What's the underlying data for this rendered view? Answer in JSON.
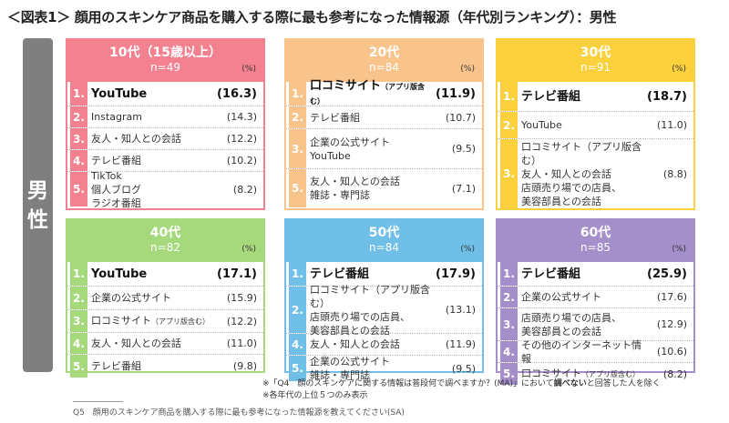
{
  "title": "＜図表1＞ 顔用のスキンケア商品を購入する際に最も参考になった情報源（年代別ランキング）：男性",
  "gender": "男性",
  "unit": "(%)",
  "chart_data": {
    "type": "table",
    "title": "＜図表1＞ 顔用のスキンケア商品を購入する際に最も参考になった情報源（年代別ランキング）：男性",
    "segment": "男性",
    "panels": [
      {
        "age": "10代（15歳以上）",
        "n": "n=49",
        "color": "#f4818f",
        "rankColor": "#f4818f",
        "rows": [
          {
            "rank": "1.",
            "label": "YouTube",
            "value": "(16.3)"
          },
          {
            "rank": "2.",
            "label": "Instagram",
            "value": "(14.3)"
          },
          {
            "rank": "3.",
            "label": "友人・知人との会話",
            "value": "(12.2)"
          },
          {
            "rank": "4.",
            "label": "テレビ番組",
            "value": "(10.2)"
          },
          {
            "rank": "5.",
            "label": "TikTok\n個人ブログ\nラジオ番組",
            "value": "(8.2)"
          }
        ]
      },
      {
        "age": "20代",
        "n": "n=84",
        "color": "#f9c48c",
        "rankColor": "#f9c48c",
        "rows": [
          {
            "rank": "1.",
            "label": "口コミサイト",
            "sub": "（アプリ版含む）",
            "value": "(11.9)"
          },
          {
            "rank": "2.",
            "label": "テレビ番組",
            "value": "(10.7)"
          },
          {
            "rank": "3.",
            "label": "企業の公式サイト\nYouTube",
            "value": "(9.5)"
          },
          {
            "rank": "5.",
            "label": "友人・知人との会話\n雑誌・専門誌",
            "value": "(7.1)"
          }
        ]
      },
      {
        "age": "30代",
        "n": "n=91",
        "color": "#fad13d",
        "rankColor": "#fad13d",
        "rows": [
          {
            "rank": "1.",
            "label": "テレビ番組",
            "value": "(18.7)"
          },
          {
            "rank": "2.",
            "label": "YouTube",
            "value": "(11.0)"
          },
          {
            "rank": "3.",
            "label": "口コミサイト（アプリ版含む）\n友人・知人との会話\n店頭売り場での店員、\n美容部員との会話",
            "value": "(8.8)"
          }
        ]
      },
      {
        "age": "40代",
        "n": "n=82",
        "color": "#a6d97c",
        "rankColor": "#a6d97c",
        "rows": [
          {
            "rank": "1.",
            "label": "YouTube",
            "value": "(17.1)"
          },
          {
            "rank": "2.",
            "label": "企業の公式サイト",
            "value": "(15.9)"
          },
          {
            "rank": "3.",
            "label": "口コミサイト",
            "sub": "（アプリ版含む）",
            "value": "(12.2)"
          },
          {
            "rank": "4.",
            "label": "友人・知人との会話",
            "value": "(11.0)"
          },
          {
            "rank": "5.",
            "label": "テレビ番組",
            "value": "(9.8)"
          }
        ]
      },
      {
        "age": "50代",
        "n": "n=84",
        "color": "#6fbfe8",
        "rankColor": "#6fbfe8",
        "rows": [
          {
            "rank": "1.",
            "label": "テレビ番組",
            "value": "(17.9)"
          },
          {
            "rank": "2.",
            "label": "口コミサイト（アプリ版含む）\n店頭売り場での店員、\n美容部員との会話",
            "value": "(13.1)"
          },
          {
            "rank": "4.",
            "label": "友人・知人との会話",
            "value": "(11.9)"
          },
          {
            "rank": "5.",
            "label": "企業の公式サイト\n雑誌・専門誌",
            "value": "(9.5)"
          }
        ]
      },
      {
        "age": "60代",
        "n": "n=85",
        "color": "#a48fcb",
        "rankColor": "#a48fcb",
        "rows": [
          {
            "rank": "1.",
            "label": "テレビ番組",
            "value": "(25.9)"
          },
          {
            "rank": "2.",
            "label": "企業の公式サイト",
            "value": "(17.6)"
          },
          {
            "rank": "3.",
            "label": "店頭売り場での店員、\n美容部員との会話",
            "value": "(12.9)"
          },
          {
            "rank": "4.",
            "label": "その他のインターネット情報",
            "value": "(10.6)"
          },
          {
            "rank": "5.",
            "label": "口コミサイト",
            "sub": "（アプリ版含む）",
            "value": "(8.2)"
          }
        ]
      }
    ]
  },
  "notes": {
    "note1_a": "※「Q4　顔のスキンケアに関する情報は普段何で調べますか？(MA)」において",
    "note1_b": "調べない",
    "note1_c": "と回答した人を除く",
    "note2": "※各年代の上位５つのみ表示",
    "q5": "Q5　顔用のスキンケア商品を購入する際に最も参考になった情報源を教えてください(SA)"
  }
}
